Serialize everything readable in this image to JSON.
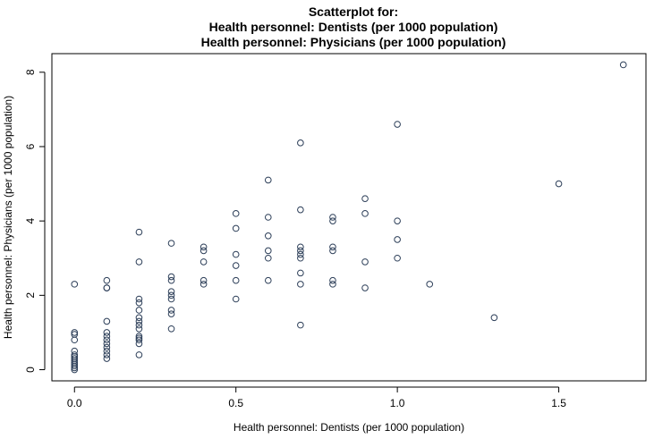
{
  "chart_data": {
    "type": "scatter",
    "title_lines": [
      "Scatterplot for:",
      "Health personnel: Dentists (per 1000 population)",
      "Health personnel: Physicians (per 1000 population)"
    ],
    "xlabel": "Health personnel: Dentists (per 1000 population)",
    "ylabel": "Health personnel: Physicians (per 1000 population)",
    "xlim": [
      -0.07,
      1.77
    ],
    "ylim": [
      -0.3,
      8.5
    ],
    "xticks": [
      0.0,
      0.5,
      1.0,
      1.5
    ],
    "xtick_labels": [
      "0.0",
      "0.5",
      "1.0",
      "1.5"
    ],
    "yticks": [
      0,
      2,
      4,
      6,
      8
    ],
    "ytick_labels": [
      "0",
      "2",
      "4",
      "6",
      "8"
    ],
    "grid": false,
    "legend": "none",
    "marker": "open-circle",
    "marker_color": "#2c3e58",
    "points": [
      [
        0.0,
        2.3
      ],
      [
        0.0,
        1.0
      ],
      [
        0.0,
        0.95
      ],
      [
        0.0,
        0.8
      ],
      [
        0.0,
        0.5
      ],
      [
        0.0,
        0.4
      ],
      [
        0.0,
        0.35
      ],
      [
        0.0,
        0.3
      ],
      [
        0.0,
        0.25
      ],
      [
        0.0,
        0.2
      ],
      [
        0.0,
        0.15
      ],
      [
        0.0,
        0.1
      ],
      [
        0.0,
        0.05
      ],
      [
        0.0,
        0.0
      ],
      [
        0.1,
        2.4
      ],
      [
        0.1,
        2.2
      ],
      [
        0.1,
        2.2
      ],
      [
        0.1,
        1.3
      ],
      [
        0.1,
        1.0
      ],
      [
        0.1,
        0.9
      ],
      [
        0.1,
        0.8
      ],
      [
        0.1,
        0.7
      ],
      [
        0.1,
        0.6
      ],
      [
        0.1,
        0.5
      ],
      [
        0.1,
        0.4
      ],
      [
        0.1,
        0.3
      ],
      [
        0.2,
        3.7
      ],
      [
        0.2,
        2.9
      ],
      [
        0.2,
        1.9
      ],
      [
        0.2,
        1.8
      ],
      [
        0.2,
        1.6
      ],
      [
        0.2,
        1.4
      ],
      [
        0.2,
        1.3
      ],
      [
        0.2,
        1.2
      ],
      [
        0.2,
        1.1
      ],
      [
        0.2,
        0.9
      ],
      [
        0.2,
        0.85
      ],
      [
        0.2,
        0.8
      ],
      [
        0.2,
        0.7
      ],
      [
        0.2,
        0.4
      ],
      [
        0.3,
        3.4
      ],
      [
        0.3,
        2.5
      ],
      [
        0.3,
        2.4
      ],
      [
        0.3,
        2.1
      ],
      [
        0.3,
        2.0
      ],
      [
        0.3,
        1.9
      ],
      [
        0.3,
        1.6
      ],
      [
        0.3,
        1.5
      ],
      [
        0.3,
        1.1
      ],
      [
        0.4,
        3.3
      ],
      [
        0.4,
        3.2
      ],
      [
        0.4,
        2.9
      ],
      [
        0.4,
        2.4
      ],
      [
        0.4,
        2.3
      ],
      [
        0.5,
        4.2
      ],
      [
        0.5,
        3.8
      ],
      [
        0.5,
        3.1
      ],
      [
        0.5,
        2.8
      ],
      [
        0.5,
        2.4
      ],
      [
        0.5,
        1.9
      ],
      [
        0.6,
        5.1
      ],
      [
        0.6,
        4.1
      ],
      [
        0.6,
        3.6
      ],
      [
        0.6,
        3.2
      ],
      [
        0.6,
        3.0
      ],
      [
        0.6,
        2.4
      ],
      [
        0.7,
        6.1
      ],
      [
        0.7,
        4.3
      ],
      [
        0.7,
        3.3
      ],
      [
        0.7,
        3.2
      ],
      [
        0.7,
        3.1
      ],
      [
        0.7,
        3.0
      ],
      [
        0.7,
        2.6
      ],
      [
        0.7,
        2.3
      ],
      [
        0.7,
        1.2
      ],
      [
        0.8,
        4.1
      ],
      [
        0.8,
        4.0
      ],
      [
        0.8,
        3.3
      ],
      [
        0.8,
        3.2
      ],
      [
        0.8,
        2.4
      ],
      [
        0.8,
        2.3
      ],
      [
        0.9,
        4.6
      ],
      [
        0.9,
        4.2
      ],
      [
        0.9,
        2.9
      ],
      [
        0.9,
        2.2
      ],
      [
        1.0,
        6.6
      ],
      [
        1.0,
        4.0
      ],
      [
        1.0,
        3.5
      ],
      [
        1.0,
        3.0
      ],
      [
        1.1,
        2.3
      ],
      [
        1.3,
        1.4
      ],
      [
        1.5,
        5.0
      ],
      [
        1.7,
        8.2
      ]
    ]
  }
}
